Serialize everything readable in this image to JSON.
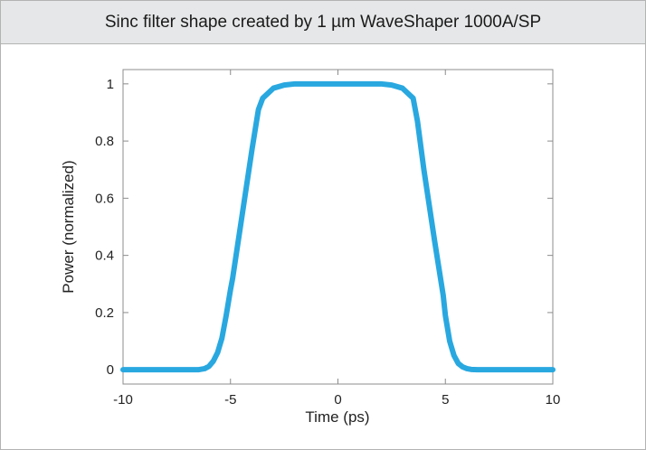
{
  "header": {
    "title": "Sinc filter shape created by 1 µm WaveShaper 1000A/SP"
  },
  "chart_data": {
    "type": "line",
    "title": "Sinc filter shape created by 1 µm WaveShaper 1000A/SP",
    "xlabel": "Time (ps)",
    "ylabel": "Power (normalized)",
    "xlim": [
      -10,
      10
    ],
    "ylim": [
      -0.05,
      1.05
    ],
    "xticks": [
      -10,
      -5,
      0,
      5,
      10
    ],
    "xtick_labels": [
      "-10",
      "-5",
      "0",
      "5",
      "10"
    ],
    "yticks": [
      0,
      0.2,
      0.4,
      0.6,
      0.8,
      1
    ],
    "ytick_labels": [
      "0",
      "0.2",
      "0.4",
      "0.6",
      "0.8",
      "1"
    ],
    "grid": false,
    "series": [
      {
        "color": "#29a8e0",
        "x": [
          -10,
          -8,
          -7,
          -6.5,
          -6.2,
          -6.0,
          -5.8,
          -5.6,
          -5.4,
          -5.2,
          -5.0,
          -4.9,
          -4.5,
          -4.0,
          -3.7,
          -3.5,
          -3.0,
          -2.5,
          -2.0,
          -1.0,
          0,
          1.0,
          2.0,
          2.5,
          3.0,
          3.5,
          3.7,
          4.0,
          4.5,
          4.9,
          5.0,
          5.2,
          5.4,
          5.6,
          5.8,
          6.0,
          6.2,
          6.5,
          7,
          8,
          10
        ],
        "y": [
          0,
          0,
          0,
          0.0,
          0.004,
          0.012,
          0.03,
          0.06,
          0.11,
          0.19,
          0.28,
          0.32,
          0.52,
          0.77,
          0.91,
          0.95,
          0.985,
          0.996,
          1.0,
          1.0,
          1.0,
          1.0,
          1.0,
          0.996,
          0.985,
          0.95,
          0.87,
          0.7,
          0.45,
          0.26,
          0.19,
          0.1,
          0.05,
          0.022,
          0.01,
          0.004,
          0.001,
          0.0,
          0,
          0,
          0
        ]
      }
    ]
  }
}
